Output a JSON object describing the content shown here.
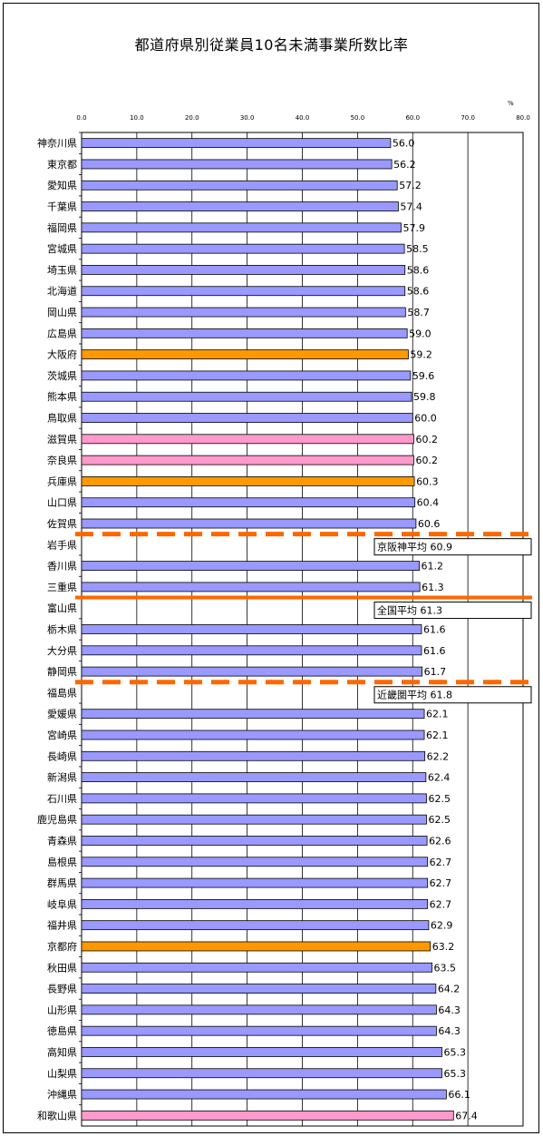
{
  "chart_data": {
    "type": "bar",
    "orientation": "horizontal",
    "title": "都道府県別従業員10名未満事業所数比率",
    "unit": "%",
    "xlim": [
      0,
      80
    ],
    "x_ticks": [
      "0.0",
      "10.0",
      "20.0",
      "30.0",
      "40.0",
      "50.0",
      "60.0",
      "70.0",
      "80.0"
    ],
    "grid": true,
    "colors": {
      "default": "#9999ff",
      "kinki": "#ff9900",
      "kinki_other": "#ff99cc",
      "reference_line": "#ff6600"
    },
    "categories": [
      "神奈川県",
      "東京都",
      "愛知県",
      "千葉県",
      "福岡県",
      "宮城県",
      "埼玉県",
      "北海道",
      "岡山県",
      "広島県",
      "大阪府",
      "茨城県",
      "熊本県",
      "鳥取県",
      "滋賀県",
      "奈良県",
      "兵庫県",
      "山口県",
      "佐賀県",
      "岩手県",
      "香川県",
      "三重県",
      "富山県",
      "栃木県",
      "大分県",
      "静岡県",
      "福島県",
      "愛媛県",
      "宮崎県",
      "長崎県",
      "新潟県",
      "石川県",
      "鹿児島県",
      "青森県",
      "島根県",
      "群馬県",
      "岐阜県",
      "福井県",
      "京都府",
      "秋田県",
      "長野県",
      "山形県",
      "徳島県",
      "高知県",
      "山梨県",
      "沖縄県",
      "和歌山県"
    ],
    "values": [
      56.0,
      56.2,
      57.2,
      57.4,
      57.9,
      58.5,
      58.6,
      58.6,
      58.7,
      59.0,
      59.2,
      59.6,
      59.8,
      60.0,
      60.2,
      60.2,
      60.3,
      60.4,
      60.6,
      null,
      61.2,
      61.3,
      null,
      61.6,
      61.6,
      61.7,
      null,
      62.1,
      62.1,
      62.2,
      62.4,
      62.5,
      62.5,
      62.6,
      62.7,
      62.7,
      62.7,
      62.9,
      63.2,
      63.5,
      64.2,
      64.3,
      64.3,
      65.3,
      65.3,
      66.1,
      67.4
    ],
    "value_labels": [
      "56.0",
      "56.2",
      "57.2",
      "57.4",
      "57.9",
      "58.5",
      "58.6",
      "58.6",
      "58.7",
      "59.0",
      "59.2",
      "59.6",
      "59.8",
      "60.0",
      "60.2",
      "60.2",
      "60.3",
      "60.4",
      "60.6",
      "",
      "61.2",
      "61.3",
      "",
      "61.6",
      "61.6",
      "61.7",
      "",
      "62.1",
      "62.1",
      "62.2",
      "62.4",
      "62.5",
      "62.5",
      "62.6",
      "62.7",
      "62.7",
      "62.7",
      "62.9",
      "63.2",
      "63.5",
      "64.2",
      "64.3",
      "64.3",
      "65.3",
      "65.3",
      "66.1",
      "67.4"
    ],
    "bar_colors": [
      "default",
      "default",
      "default",
      "default",
      "default",
      "default",
      "default",
      "default",
      "default",
      "default",
      "kinki",
      "default",
      "default",
      "default",
      "kinki_other",
      "kinki_other",
      "kinki",
      "default",
      "default",
      "default",
      "default",
      "default",
      "default",
      "default",
      "default",
      "default",
      "default",
      "default",
      "default",
      "default",
      "default",
      "default",
      "default",
      "default",
      "default",
      "default",
      "default",
      "default",
      "kinki",
      "default",
      "default",
      "default",
      "default",
      "default",
      "default",
      "default",
      "kinki_other"
    ],
    "reference_lines": [
      {
        "label": "京阪神平均 60.9",
        "value": 60.9,
        "style": "dashed",
        "after_index": 18
      },
      {
        "label": "全国平均 61.3",
        "value": 61.3,
        "style": "solid",
        "after_index": 21
      },
      {
        "label": "近畿圏平均 61.8",
        "value": 61.8,
        "style": "dashed",
        "after_index": 25
      }
    ]
  }
}
